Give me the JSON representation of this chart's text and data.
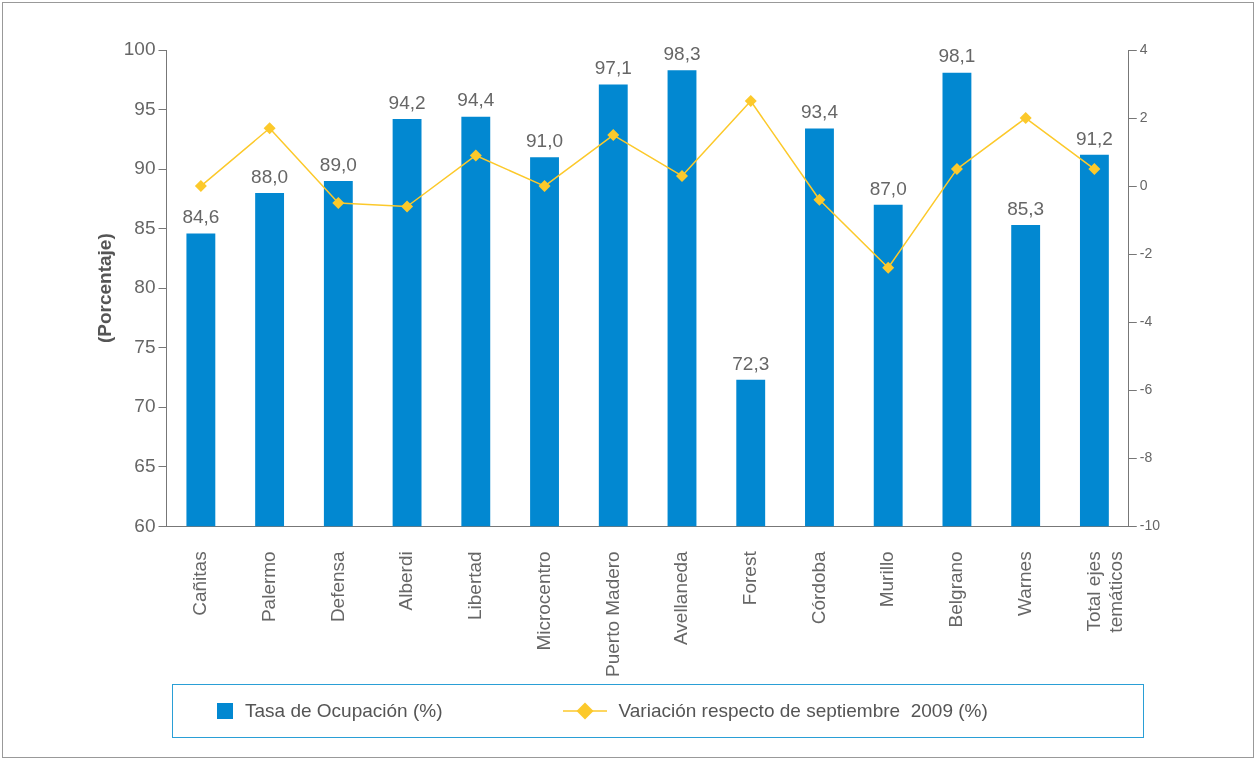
{
  "chart_data": {
    "type": "bar",
    "ylabel": "(Porcentaje)",
    "categories": [
      "Cañitas",
      "Palermo",
      "Defensa",
      "Alberdi",
      "Libertad",
      "Microcentro",
      "Puerto Madero",
      "Avellaneda",
      "Forest",
      "Córdoba",
      "Murillo",
      "Belgrano",
      "Warnes",
      "Total ejes temáticos"
    ],
    "series": [
      {
        "name": "Tasa de Ocupación (%)",
        "color": "#0288d1",
        "values": [
          84.6,
          88.0,
          89.0,
          94.2,
          94.4,
          91.0,
          97.1,
          98.3,
          72.3,
          93.4,
          87.0,
          98.1,
          85.3,
          91.2
        ],
        "value_labels": [
          "84,6",
          "88,0",
          "89,0",
          "94,2",
          "94,4",
          "91,0",
          "97,1",
          "98,3",
          "72,3",
          "93,4",
          "87,0",
          "98,1",
          "85,3",
          "91,2"
        ]
      },
      {
        "name": "Variación respecto de septiembre  2009 (%)",
        "type": "line",
        "axis": "y2",
        "color": "#fcc92b",
        "marker": "diamond",
        "values": [
          0,
          1.7,
          -0.5,
          -0.6,
          0.9,
          0,
          1.5,
          0.3,
          2.5,
          -0.4,
          -2.4,
          0.5,
          2.0,
          0.5
        ]
      }
    ],
    "ylim": [
      60,
      100
    ],
    "yticks": [
      60,
      65,
      70,
      75,
      80,
      85,
      90,
      95,
      100
    ],
    "y2lim": [
      -10,
      4
    ],
    "y2ticks": [
      -10,
      -8,
      -6,
      -4,
      -2,
      0,
      2,
      4
    ],
    "grid": false,
    "legend": "bottom"
  }
}
